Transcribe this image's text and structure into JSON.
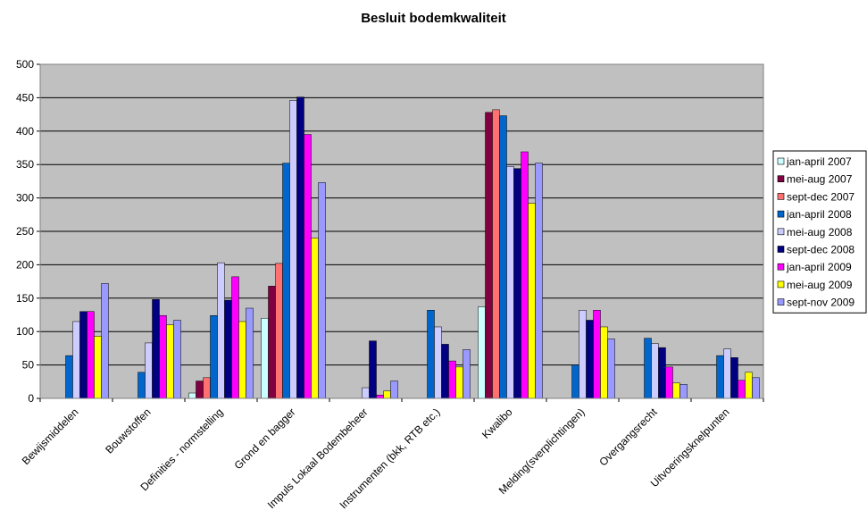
{
  "chart_data": {
    "type": "bar",
    "title": "Besluit bodemkwaliteit",
    "xlabel": "",
    "ylabel": "",
    "ylim": [
      0,
      500
    ],
    "yticks": [
      0,
      50,
      100,
      150,
      200,
      250,
      300,
      350,
      400,
      450,
      500
    ],
    "grid": true,
    "plot_background": "#c0c0c0",
    "legend_position": "right",
    "categories": [
      "Bewijsmiddelen",
      "Bouwstoffen",
      "Definities - normstelling",
      "Grond en bagger",
      "Impuls Lokaal Bodembeheer",
      "Instrumenten (bkk, RTB etc.)",
      "Kwalibo",
      "Melding(sverplichtingen)",
      "Overgangsrecht",
      "Uitvoeringsknelpunten"
    ],
    "series": [
      {
        "name": "jan-april 2007",
        "color": "#ccffff",
        "values": [
          0,
          0,
          8,
          120,
          0,
          0,
          137,
          0,
          0,
          0
        ]
      },
      {
        "name": "mei-aug 2007",
        "color": "#800040",
        "values": [
          0,
          0,
          26,
          168,
          0,
          0,
          428,
          0,
          0,
          0
        ]
      },
      {
        "name": "sept-dec 2007",
        "color": "#ff7070",
        "values": [
          0,
          0,
          31,
          202,
          0,
          0,
          432,
          0,
          0,
          0
        ]
      },
      {
        "name": "jan-april 2008",
        "color": "#0066cc",
        "values": [
          64,
          39,
          124,
          352,
          0,
          132,
          423,
          50,
          90,
          64
        ]
      },
      {
        "name": "mei-aug 2008",
        "color": "#ccccff",
        "values": [
          115,
          83,
          203,
          446,
          16,
          107,
          347,
          132,
          82,
          74
        ]
      },
      {
        "name": "sept-dec 2008",
        "color": "#000080",
        "values": [
          130,
          148,
          147,
          451,
          86,
          81,
          344,
          117,
          76,
          61
        ]
      },
      {
        "name": "jan-april 2009",
        "color": "#ff00ff",
        "values": [
          130,
          124,
          182,
          395,
          5,
          56,
          369,
          132,
          47,
          27
        ]
      },
      {
        "name": "mei-aug 2009",
        "color": "#ffff00",
        "values": [
          93,
          110,
          115,
          240,
          11,
          47,
          292,
          107,
          23,
          39
        ]
      },
      {
        "name": "sept-nov 2009",
        "color": "#9999ff",
        "values": [
          172,
          117,
          135,
          323,
          26,
          73,
          352,
          89,
          21,
          31
        ]
      }
    ]
  }
}
